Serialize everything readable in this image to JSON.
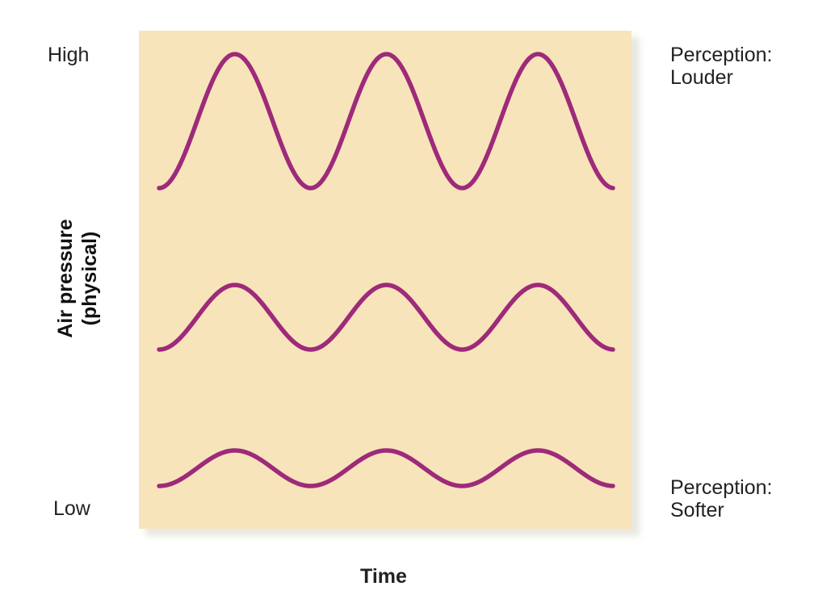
{
  "labels": {
    "high": "High",
    "low": "Low",
    "y_axis_line1": "Air pressure",
    "y_axis_line2": "(physical)",
    "x_axis": "Time",
    "louder_line1": "Perception:",
    "louder_line2": "Louder",
    "softer_line1": "Perception:",
    "softer_line2": "Softer"
  },
  "colors": {
    "panel": "#f8e4bb",
    "wave": "#9e2a7a"
  },
  "waves": [
    {
      "amplitude": "large",
      "cycles": 3
    },
    {
      "amplitude": "medium",
      "cycles": 3
    },
    {
      "amplitude": "small",
      "cycles": 3
    }
  ]
}
